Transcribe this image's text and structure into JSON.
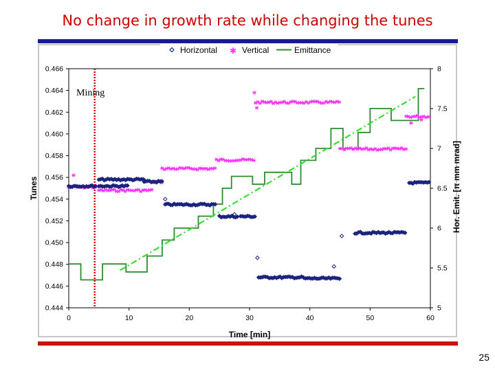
{
  "slide": {
    "title": "No change in growth rate while changing the tunes",
    "page_number": "25"
  },
  "colors": {
    "title": "#cc0000",
    "horizontal": "#1a237e",
    "vertical": "#ff33ff",
    "emittance": "#2e8b2e",
    "fit": "#33dd33",
    "marker_line": "#dd0000"
  },
  "chart_data": {
    "type": "scatter",
    "xlabel": "Time [min]",
    "ylabel": "Tunes",
    "y2label": "Hor. Emit. [π mm mrad]",
    "xlim": [
      0,
      60
    ],
    "ylim": [
      0.444,
      0.466
    ],
    "y2lim": [
      5,
      8
    ],
    "x_ticks": [
      "0",
      "10",
      "20",
      "30",
      "40",
      "50",
      "60"
    ],
    "y_ticks": [
      "0.444",
      "0.446",
      "0.448",
      "0.450",
      "0.452",
      "0.454",
      "0.456",
      "0.458",
      "0.460",
      "0.462",
      "0.464",
      "0.466"
    ],
    "y2_ticks": [
      "5",
      "5.5",
      "6",
      "6.5",
      "7",
      "7.5",
      "8"
    ],
    "legend_position": "top",
    "grid": false,
    "annotation": {
      "text": "Mining",
      "x": 4.3
    },
    "series": [
      {
        "name": "Horizontal",
        "marker": "diamond",
        "segments": [
          {
            "x0": 0,
            "x1": 4.5,
            "y": 0.4552
          },
          {
            "x0": 5,
            "x1": 10,
            "y": 0.4552
          },
          {
            "x0": 5,
            "x1": 12.5,
            "y": 0.4558
          },
          {
            "x0": 12.5,
            "x1": 15.5,
            "y": 0.4556
          },
          {
            "x0": 16,
            "x1": 24.5,
            "y": 0.4535
          },
          {
            "x0": 25,
            "x1": 28,
            "y": 0.4524
          },
          {
            "x0": 28.5,
            "x1": 31,
            "y": 0.4524
          },
          {
            "x0": 31.5,
            "x1": 39,
            "y": 0.4468
          },
          {
            "x0": 39,
            "x1": 45,
            "y": 0.4467
          },
          {
            "x0": 47.5,
            "x1": 56,
            "y": 0.4509
          },
          {
            "x0": 56.5,
            "x1": 60,
            "y": 0.4555
          }
        ],
        "outliers": [
          [
            16,
            0.454
          ],
          [
            27.5,
            0.4526
          ],
          [
            31.3,
            0.4486
          ],
          [
            44,
            0.4478
          ],
          [
            45.3,
            0.4506
          ]
        ]
      },
      {
        "name": "Vertical",
        "marker": "asterisk",
        "segments": [
          {
            "x0": 0,
            "x1": 5,
            "y": 0.4551
          },
          {
            "x0": 5,
            "x1": 14,
            "y": 0.4548
          },
          {
            "x0": 14,
            "x1": 15.5,
            "y": 0.4556
          },
          {
            "x0": 15.5,
            "x1": 24.5,
            "y": 0.4568
          },
          {
            "x0": 24.5,
            "x1": 31,
            "y": 0.4576
          },
          {
            "x0": 31,
            "x1": 45,
            "y": 0.4629
          },
          {
            "x0": 45,
            "x1": 56,
            "y": 0.4586
          },
          {
            "x0": 56,
            "x1": 60,
            "y": 0.4616
          }
        ],
        "outliers": [
          [
            0.8,
            0.4562
          ],
          [
            30.8,
            0.4638
          ],
          [
            31.2,
            0.4624
          ],
          [
            56.8,
            0.461
          ],
          [
            58.5,
            0.4613
          ]
        ]
      },
      {
        "name": "Emittance",
        "axis": "y2",
        "style": "line",
        "x": [
          0,
          2,
          2,
          5.6,
          5.6,
          9.5,
          9.5,
          13,
          13,
          15.5,
          15.5,
          17.5,
          17.5,
          21.5,
          21.5,
          24,
          24,
          25.5,
          25.5,
          27,
          27,
          30.5,
          30.5,
          32.5,
          32.5,
          37,
          37,
          38.5,
          38.5,
          41,
          41,
          43.5,
          43.5,
          45.5,
          45.5,
          48,
          48,
          50,
          50,
          53.5,
          53.5,
          57,
          57,
          58,
          58,
          59
        ],
        "y": [
          5.55,
          5.55,
          5.35,
          5.35,
          5.55,
          5.55,
          5.45,
          5.45,
          5.65,
          5.65,
          5.85,
          5.85,
          6.0,
          6.0,
          6.15,
          6.15,
          6.3,
          6.3,
          6.5,
          6.5,
          6.65,
          6.65,
          6.55,
          6.55,
          6.7,
          6.7,
          6.55,
          6.55,
          6.85,
          6.85,
          7.0,
          7.0,
          7.25,
          7.25,
          7.0,
          7.0,
          7.2,
          7.2,
          7.5,
          7.5,
          7.35,
          7.35,
          7.35,
          7.35,
          7.75,
          7.75
        ]
      },
      {
        "name": "",
        "axis": "y2",
        "style": "dash-dot",
        "x": [
          8.5,
          57.5
        ],
        "y": [
          5.47,
          7.65
        ]
      }
    ]
  }
}
